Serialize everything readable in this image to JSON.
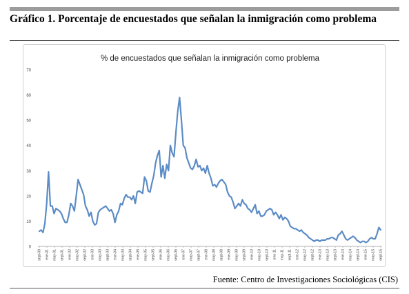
{
  "figure": {
    "title": "Gráfico 1. Porcentaje de encuestados que señalan la inmigración como problema",
    "source": "Fuente: Centro de Investigaciones Sociológicas (CIS)"
  },
  "chart_data": {
    "type": "line",
    "title": "% de encuestados que señalan la inmigración como problema",
    "xlabel": "",
    "ylabel": "",
    "ylim": [
      0,
      70
    ],
    "yticks": [
      0,
      10,
      20,
      30,
      40,
      50,
      60,
      70
    ],
    "grid": false,
    "legend": "none",
    "line_color": "#5b8cc6",
    "x_tick_labels": [
      "sept-00",
      "ene-01",
      "may-01",
      "sept-01",
      "ene-02",
      "may-02",
      "sept-02",
      "ene-03",
      "may-03",
      "sept-03",
      "ene-04",
      "may-04",
      "sept-04",
      "ene-05",
      "may-05",
      "sept-05",
      "ene-06",
      "may-06",
      "sept-06",
      "ene-07",
      "may-07",
      "sept-07",
      "ene-08",
      "may-08",
      "sept-08",
      "ene-09",
      "may-09",
      "sept-09",
      "ene-10",
      "may-10",
      "sept-10",
      "ene-11",
      "may-11",
      "sept-11",
      "ene-12",
      "may-12",
      "sept-12",
      "ene-13",
      "may-13",
      "sept-13",
      "ene-14",
      "may-14",
      "sept-14",
      "ene-15",
      "may-15",
      "sept-15"
    ],
    "series": [
      {
        "values": [
          6,
          6.5,
          5.5,
          9,
          17,
          29.5,
          16,
          16,
          13,
          15,
          14.5,
          14,
          13,
          11,
          9.5,
          9.5,
          12.5,
          17,
          16,
          14,
          20,
          26.5,
          24.5,
          22.5,
          20.5,
          16,
          14.5,
          12,
          13.5,
          10,
          8.5,
          9,
          13.5,
          14.5,
          15,
          15.5,
          16,
          15,
          14,
          14.5,
          13,
          9.5,
          12.5,
          14,
          17,
          16.5,
          19,
          20.5,
          19.5,
          19.5,
          18.5,
          20,
          17,
          21.5,
          22,
          21.5,
          21,
          27.5,
          26,
          22,
          21.5,
          25,
          28,
          33,
          36,
          38,
          27.5,
          32,
          27,
          32.5,
          30,
          40,
          37,
          35.5,
          45,
          53.5,
          59,
          50,
          40,
          39,
          35,
          33,
          31,
          30.5,
          32,
          34.5,
          31.5,
          32,
          30,
          31,
          29,
          32,
          29,
          27,
          24,
          24.5,
          23.5,
          25,
          26,
          26.5,
          25.5,
          24.5,
          21.5,
          20,
          19.5,
          17.5,
          15,
          16,
          17,
          16,
          18.5,
          17,
          16.5,
          15,
          14.5,
          13.5,
          15,
          16.5,
          13,
          14,
          12,
          12,
          12.5,
          14,
          14.5,
          15,
          14.5,
          12.5,
          13.5,
          12.5,
          11,
          12.5,
          10.5,
          11.5,
          11,
          10,
          8,
          7.5,
          7,
          7,
          6.5,
          6,
          6.5,
          5.5,
          5,
          4.5,
          3.5,
          3,
          2.5,
          2,
          2.5,
          2.5,
          2,
          2.5,
          2.5,
          2.5,
          3,
          3,
          3.5,
          3.5,
          3,
          2.5,
          4.5,
          5,
          6,
          4.5,
          3,
          2.5,
          3,
          3.5,
          4,
          3.5,
          2.5,
          2,
          1.5,
          2,
          2,
          1.5,
          2,
          3,
          3.5,
          3,
          3,
          5,
          7.5,
          6.5
        ]
      }
    ]
  }
}
